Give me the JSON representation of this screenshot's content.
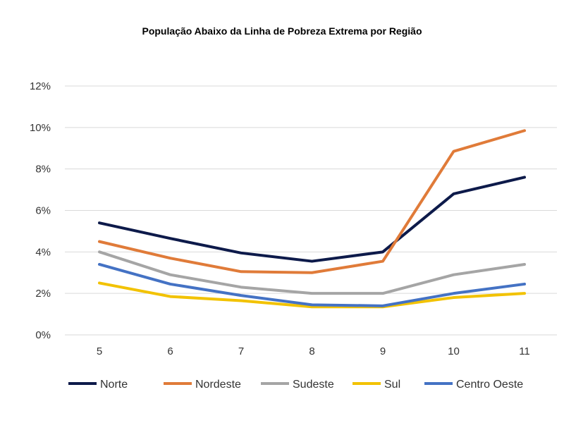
{
  "chart_data": {
    "type": "line",
    "title": "População Abaixo da Linha de Pobreza Extrema por Região",
    "xlabel": "",
    "ylabel": "",
    "x": [
      5,
      6,
      7,
      8,
      9,
      10,
      11
    ],
    "x_tick_labels": [
      "5",
      "6",
      "7",
      "8",
      "9",
      "10",
      "11"
    ],
    "ylim": [
      0,
      12
    ],
    "y_ticks": [
      0,
      2,
      4,
      6,
      8,
      10,
      12
    ],
    "y_tick_labels": [
      "0%",
      "2%",
      "4%",
      "6%",
      "8%",
      "10%",
      "12%"
    ],
    "grid": "horizontal",
    "legend_position": "bottom",
    "series": [
      {
        "name": "Norte",
        "color": "#0d1a4a",
        "values": [
          5.4,
          4.65,
          3.95,
          3.55,
          4.0,
          6.8,
          7.6
        ]
      },
      {
        "name": "Nordeste",
        "color": "#e07b39",
        "values": [
          4.5,
          3.7,
          3.05,
          3.0,
          3.55,
          8.85,
          9.85
        ]
      },
      {
        "name": "Sudeste",
        "color": "#a5a5a5",
        "values": [
          4.0,
          2.9,
          2.3,
          2.0,
          2.0,
          2.9,
          3.4
        ]
      },
      {
        "name": "Sul",
        "color": "#f2c200",
        "values": [
          2.5,
          1.85,
          1.65,
          1.35,
          1.35,
          1.8,
          2.0
        ]
      },
      {
        "name": "Centro Oeste",
        "color": "#4472c4",
        "values": [
          3.4,
          2.45,
          1.9,
          1.45,
          1.4,
          2.0,
          2.45
        ]
      }
    ]
  }
}
